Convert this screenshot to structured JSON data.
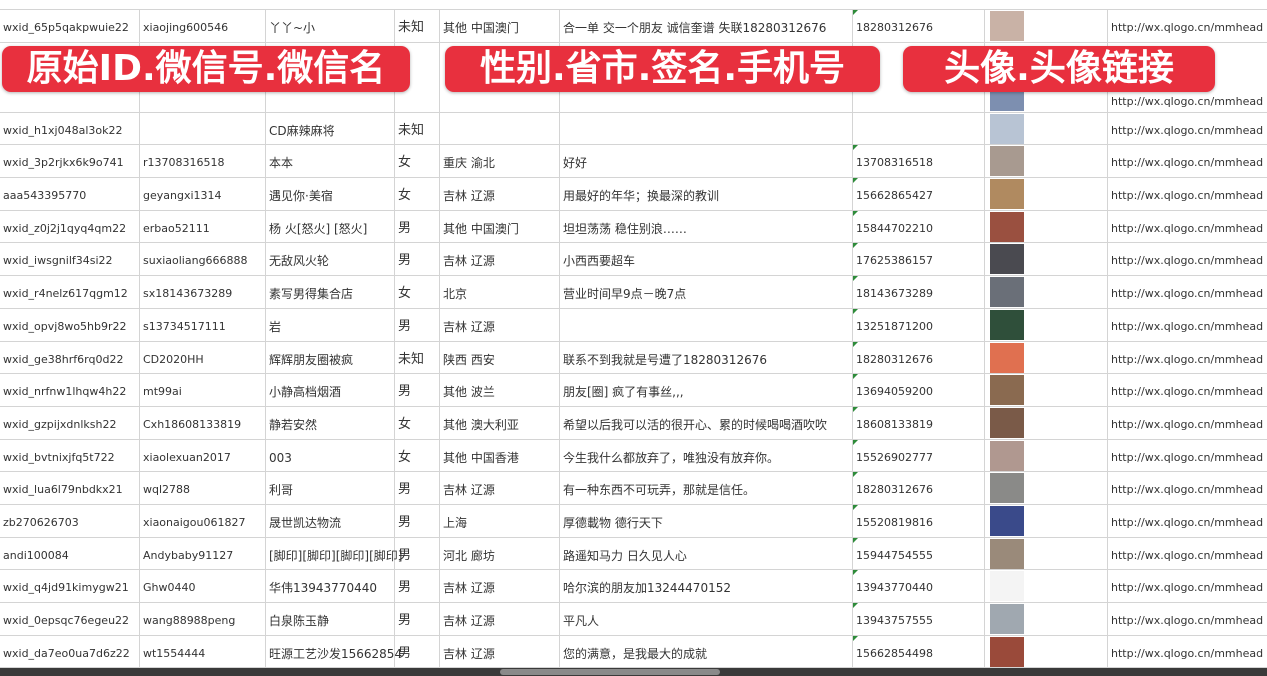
{
  "overlays": [
    "原始ID.微信号.微信名",
    "性别.省市.签名.手机号",
    "头像.头像链接"
  ],
  "colors": {
    "overlay": "#e8303e",
    "grid": "#d4d4d4"
  },
  "rows": [
    {
      "id": "wxid_65p5qakpwuie22",
      "wxno": "xiaojing600546",
      "name": "丫丫~小",
      "gender": "未知",
      "region": "其他 中国澳门",
      "signature": "合一单 交一个朋友 诚信奎谱 失联18280312676",
      "phone": "18280312676",
      "avatar_color": "#c9b2a6",
      "url": "http://wx.qlogo.cn/mmhead"
    },
    {
      "id": "",
      "wxno": "",
      "name": "",
      "gender": "",
      "region": "",
      "signature": "",
      "phone": "",
      "avatar_color": "#7d8fb0",
      "url": "http://wx.qlogo.cn/mmhead"
    },
    {
      "id": "wxid_h1xj048al3ok22",
      "wxno": "",
      "name": "CD麻辣麻将",
      "gender": "未知",
      "region": "",
      "signature": "",
      "phone": "",
      "avatar_color": "#b8c4d4",
      "url": "http://wx.qlogo.cn/mmhead"
    },
    {
      "id": "wxid_3p2rjkx6k9o741",
      "wxno": "r13708316518",
      "name": "本本",
      "gender": "女",
      "region": "重庆 渝北",
      "signature": "好好",
      "phone": "13708316518",
      "avatar_color": "#a89a90",
      "url": "http://wx.qlogo.cn/mmhead"
    },
    {
      "id": "aaa543395770",
      "wxno": "geyangxi1314",
      "name": "遇见你·美宿",
      "gender": "女",
      "region": "吉林 辽源",
      "signature": "用最好的年华；换最深的教训",
      "phone": "15662865427",
      "avatar_color": "#b08a60",
      "url": "http://wx.qlogo.cn/mmhead"
    },
    {
      "id": "wxid_z0j2j1qyq4qm22",
      "wxno": "erbao52111",
      "name": "杨 火[怒火] [怒火]",
      "gender": "男",
      "region": "其他 中国澳门",
      "signature": "坦坦荡荡 稳住别浪……",
      "phone": "15844702210",
      "avatar_color": "#9a5040",
      "url": "http://wx.qlogo.cn/mmhead"
    },
    {
      "id": "wxid_iwsgnilf34si22",
      "wxno": "suxiaoliang666888",
      "name": "无敌风火轮",
      "gender": "男",
      "region": "吉林 辽源",
      "signature": "小西西要超车",
      "phone": "17625386157",
      "avatar_color": "#4a4a50",
      "url": "http://wx.qlogo.cn/mmhead"
    },
    {
      "id": "wxid_r4nelz617qgm12",
      "wxno": "sx18143673289",
      "name": "素写男得集合店",
      "gender": "女",
      "region": "北京",
      "signature": "营业时间早9点－晚7点",
      "phone": "18143673289",
      "avatar_color": "#6a6f78",
      "url": "http://wx.qlogo.cn/mmhead"
    },
    {
      "id": "wxid_opvj8wo5hb9r22",
      "wxno": "s13734517111",
      "name": "岩",
      "gender": "男",
      "region": "吉林 辽源",
      "signature": "",
      "phone": "13251871200",
      "avatar_color": "#2f4f3a",
      "url": "http://wx.qlogo.cn/mmhead"
    },
    {
      "id": "wxid_ge38hrf6rq0d22",
      "wxno": "CD2020HH",
      "name": "辉辉朋友圈被疯",
      "gender": "未知",
      "region": "陕西 西安",
      "signature": "联系不到我就是号遭了18280312676",
      "phone": "18280312676",
      "avatar_color": "#e07050",
      "url": "http://wx.qlogo.cn/mmhead"
    },
    {
      "id": "wxid_nrfnw1lhqw4h22",
      "wxno": "mt99ai",
      "name": "小静高档烟酒",
      "gender": "男",
      "region": "其他 波兰",
      "signature": "朋友[圈] 疯了有事丝,,,",
      "phone": "13694059200",
      "avatar_color": "#8a6a50",
      "url": "http://wx.qlogo.cn/mmhead"
    },
    {
      "id": "wxid_gzpijxdnlksh22",
      "wxno": "Cxh18608133819",
      "name": "静若安然",
      "gender": "女",
      "region": "其他 澳大利亚",
      "signature": "希望以后我可以活的很开心、累的时候喝喝酒吹吹",
      "phone": "18608133819",
      "avatar_color": "#7a5a48",
      "url": "http://wx.qlogo.cn/mmhead"
    },
    {
      "id": "wxid_bvtnixjfq5t722",
      "wxno": "xiaolexuan2017",
      "name": "003",
      "gender": "女",
      "region": "其他 中国香港",
      "signature": "今生我什么都放弃了，唯独没有放弃你。",
      "phone": "15526902777",
      "avatar_color": "#b09890",
      "url": "http://wx.qlogo.cn/mmhead"
    },
    {
      "id": "wxid_lua6l79nbdkx21",
      "wxno": "wql2788",
      "name": "利哥",
      "gender": "男",
      "region": "吉林 辽源",
      "signature": "有一种东西不可玩弄，那就是信任。",
      "phone": "18280312676",
      "avatar_color": "#8a8a88",
      "url": "http://wx.qlogo.cn/mmhead"
    },
    {
      "id": "zb270626703",
      "wxno": "xiaonaigou061827",
      "name": "晟世凯达物流",
      "gender": "男",
      "region": "上海",
      "signature": "厚德載物 德行天下",
      "phone": "15520819816",
      "avatar_color": "#3a4a8a",
      "url": "http://wx.qlogo.cn/mmhead"
    },
    {
      "id": "andi100084",
      "wxno": "Andybaby91127",
      "name": "[脚印][脚印][脚印][脚印]",
      "gender": "男",
      "region": "河北 廊坊",
      "signature": "路遥知马力 日久见人心",
      "phone": "15944754555",
      "avatar_color": "#9a8a7a",
      "url": "http://wx.qlogo.cn/mmhead"
    },
    {
      "id": "wxid_q4jd91kimygw21",
      "wxno": "Ghw0440",
      "name": "华伟13943770440",
      "gender": "男",
      "region": "吉林 辽源",
      "signature": "哈尔滨的朋友加13244470152",
      "phone": "13943770440",
      "avatar_color": "#f4f4f4",
      "url": "http://wx.qlogo.cn/mmhead"
    },
    {
      "id": "wxid_0epsqc76egeu22",
      "wxno": "wang88988peng",
      "name": "白泉陈玉静",
      "gender": "男",
      "region": "吉林 辽源",
      "signature": "平凡人",
      "phone": "13943757555",
      "avatar_color": "#a0a8b0",
      "url": "http://wx.qlogo.cn/mmhead"
    },
    {
      "id": "wxid_da7eo0ua7d6z22",
      "wxno": "wt1554444",
      "name": "旺源工艺沙发15662854",
      "gender": "男",
      "region": "吉林 辽源",
      "signature": "您的满意，是我最大的成就",
      "phone": "15662854498",
      "avatar_color": "#9a4a3a",
      "url": "http://wx.qlogo.cn/mmhead"
    }
  ]
}
